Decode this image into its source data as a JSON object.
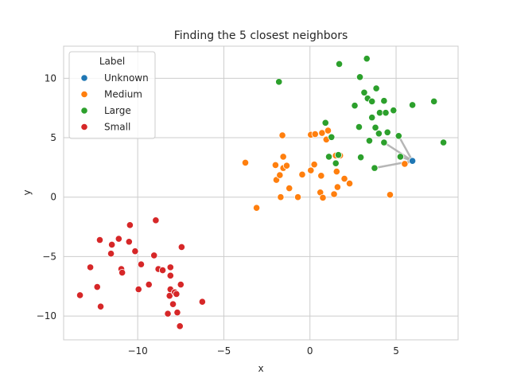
{
  "chart_data": {
    "type": "scatter",
    "title": "Finding the 5 closest neighbors",
    "xlabel": "x",
    "ylabel": "y",
    "xlim": [
      -14.3,
      8.6
    ],
    "ylim": [
      -12,
      12.7
    ],
    "xticks": [
      -10,
      -5,
      0,
      5
    ],
    "yticks": [
      -10,
      -5,
      0,
      5,
      10
    ],
    "grid": true,
    "legend": {
      "title": "Label",
      "position": "top-left",
      "entries": [
        "Unknown",
        "Medium",
        "Large",
        "Small"
      ]
    },
    "colors": {
      "Unknown": "#1f77b4",
      "Medium": "#ff7f0e",
      "Large": "#2ca02c",
      "Small": "#d62728",
      "neighbor_line": "#a9a9a9"
    },
    "series": [
      {
        "name": "Unknown",
        "points": [
          [
            5.95,
            3.05
          ]
        ]
      },
      {
        "name": "Medium",
        "points": [
          [
            -3.75,
            2.9
          ],
          [
            -3.1,
            -0.9
          ],
          [
            -2.0,
            2.7
          ],
          [
            -1.95,
            1.45
          ],
          [
            -1.75,
            1.85
          ],
          [
            -1.7,
            0.0
          ],
          [
            -1.6,
            5.2
          ],
          [
            -1.55,
            3.4
          ],
          [
            -1.55,
            2.45
          ],
          [
            -1.35,
            2.65
          ],
          [
            -1.2,
            0.75
          ],
          [
            -0.7,
            0.0
          ],
          [
            -0.45,
            1.9
          ],
          [
            0.05,
            2.25
          ],
          [
            0.05,
            5.25
          ],
          [
            0.25,
            2.75
          ],
          [
            0.3,
            5.3
          ],
          [
            0.6,
            0.4
          ],
          [
            0.65,
            1.8
          ],
          [
            0.7,
            5.4
          ],
          [
            0.75,
            -0.05
          ],
          [
            0.95,
            4.85
          ],
          [
            1.05,
            5.6
          ],
          [
            1.4,
            0.25
          ],
          [
            1.5,
            3.5
          ],
          [
            1.55,
            2.15
          ],
          [
            1.6,
            0.85
          ],
          [
            1.75,
            3.5
          ],
          [
            2.0,
            1.55
          ],
          [
            2.3,
            1.15
          ],
          [
            4.65,
            0.2
          ],
          [
            5.5,
            2.8
          ]
        ]
      },
      {
        "name": "Large",
        "points": [
          [
            -1.8,
            9.7
          ],
          [
            0.9,
            6.25
          ],
          [
            1.1,
            3.4
          ],
          [
            1.25,
            5.05
          ],
          [
            1.5,
            2.85
          ],
          [
            1.65,
            3.55
          ],
          [
            1.7,
            11.2
          ],
          [
            2.6,
            7.7
          ],
          [
            2.85,
            5.9
          ],
          [
            2.9,
            10.1
          ],
          [
            2.95,
            3.35
          ],
          [
            3.15,
            8.8
          ],
          [
            3.3,
            11.65
          ],
          [
            3.35,
            8.3
          ],
          [
            3.45,
            4.75
          ],
          [
            3.6,
            6.7
          ],
          [
            3.6,
            8.05
          ],
          [
            3.75,
            2.45
          ],
          [
            3.8,
            5.85
          ],
          [
            3.85,
            9.15
          ],
          [
            4.0,
            5.35
          ],
          [
            4.05,
            7.1
          ],
          [
            4.3,
            4.6
          ],
          [
            4.3,
            8.1
          ],
          [
            4.4,
            7.1
          ],
          [
            4.5,
            5.45
          ],
          [
            4.85,
            7.3
          ],
          [
            5.15,
            5.15
          ],
          [
            5.25,
            3.4
          ],
          [
            5.95,
            7.75
          ],
          [
            7.2,
            8.05
          ],
          [
            7.75,
            4.6
          ]
        ]
      },
      {
        "name": "Small",
        "points": [
          [
            -13.35,
            -8.25
          ],
          [
            -12.75,
            -5.9
          ],
          [
            -12.35,
            -7.55
          ],
          [
            -12.2,
            -3.6
          ],
          [
            -12.15,
            -9.2
          ],
          [
            -11.55,
            -4.75
          ],
          [
            -11.5,
            -4.0
          ],
          [
            -11.1,
            -3.5
          ],
          [
            -10.95,
            -6.05
          ],
          [
            -10.9,
            -6.35
          ],
          [
            -10.5,
            -3.75
          ],
          [
            -10.45,
            -2.35
          ],
          [
            -10.15,
            -4.55
          ],
          [
            -9.95,
            -7.75
          ],
          [
            -9.8,
            -5.65
          ],
          [
            -9.35,
            -7.35
          ],
          [
            -9.05,
            -4.9
          ],
          [
            -8.95,
            -1.95
          ],
          [
            -8.8,
            -6.05
          ],
          [
            -8.55,
            -6.15
          ],
          [
            -8.25,
            -9.8
          ],
          [
            -8.1,
            -5.9
          ],
          [
            -8.1,
            -6.6
          ],
          [
            -8.15,
            -8.3
          ],
          [
            -8.1,
            -7.75
          ],
          [
            -7.95,
            -9.0
          ],
          [
            -7.85,
            -8.0
          ],
          [
            -7.75,
            -8.15
          ],
          [
            -7.7,
            -9.7
          ],
          [
            -7.5,
            -7.35
          ],
          [
            -7.55,
            -10.85
          ],
          [
            -7.45,
            -4.2
          ],
          [
            -6.25,
            -8.8
          ]
        ]
      }
    ],
    "neighbor_links": [
      [
        [
          5.95,
          3.05
        ],
        [
          4.3,
          4.6
        ]
      ],
      [
        [
          5.95,
          3.05
        ],
        [
          5.15,
          5.15
        ]
      ],
      [
        [
          5.95,
          3.05
        ],
        [
          5.25,
          3.4
        ]
      ],
      [
        [
          5.95,
          3.05
        ],
        [
          5.5,
          2.8
        ]
      ],
      [
        [
          5.95,
          3.05
        ],
        [
          3.75,
          2.45
        ]
      ]
    ]
  }
}
